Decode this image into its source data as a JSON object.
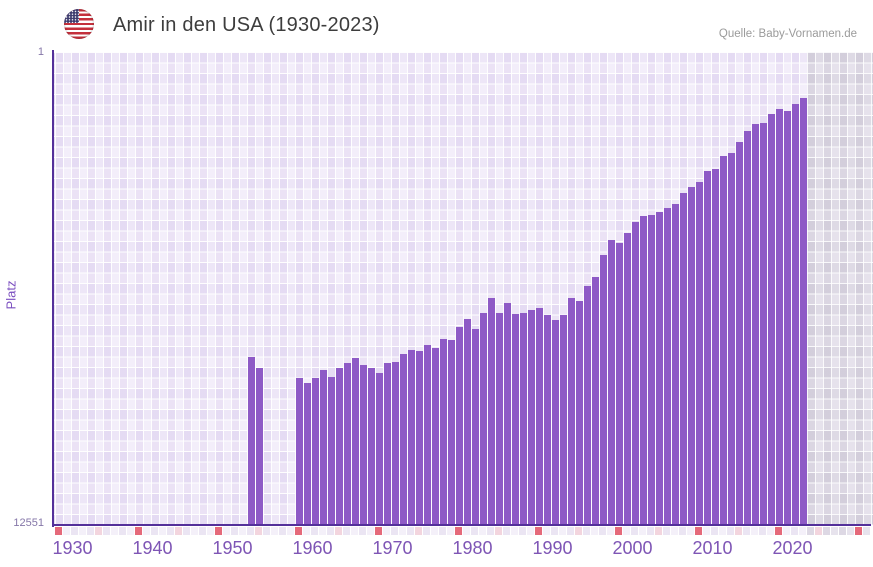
{
  "header": {
    "title": "Amir in den USA (1930-2023)",
    "source": "Quelle: Baby-Vornamen.de"
  },
  "y_axis": {
    "title": "Platz",
    "top_label": "1",
    "bottom_label": "12551"
  },
  "x_axis": {
    "decade_labels": [
      "1930",
      "1940",
      "1950",
      "1960",
      "1970",
      "1980",
      "1990",
      "2000",
      "2010",
      "2020"
    ]
  },
  "colors": {
    "bar": "#8e5ac6",
    "axis_line": "#54309a",
    "decade_tick": "#e5697a",
    "half_decade_tick": "#f3d5de",
    "tick_cell_even": "#ebe5f3",
    "tick_cell_odd": "#f4f0f9",
    "tick_cell_even_future": "#ddd8e4",
    "tick_cell_odd_future": "#e7e3ed",
    "x_label": "#7e55b5",
    "y_label": "#8577a8",
    "title_text": "#3d3d3d",
    "source_text": "#9b9b9b"
  },
  "chart_data": {
    "type": "bar",
    "title": "Amir in den USA (1930-2023)",
    "xlabel": "",
    "ylabel": "Platz",
    "y_inverted": true,
    "ylim": [
      1,
      12551
    ],
    "xlim": [
      1930,
      2031
    ],
    "data_end_year": 2023,
    "legend": "none",
    "grid": "checkerboard",
    "years": [
      1954,
      1955,
      1960,
      1961,
      1962,
      1963,
      1964,
      1965,
      1966,
      1967,
      1968,
      1969,
      1970,
      1971,
      1972,
      1973,
      1974,
      1975,
      1976,
      1977,
      1978,
      1979,
      1980,
      1981,
      1982,
      1983,
      1984,
      1985,
      1986,
      1987,
      1988,
      1989,
      1990,
      1991,
      1992,
      1993,
      1994,
      1995,
      1996,
      1997,
      1998,
      1999,
      2000,
      2001,
      2002,
      2003,
      2004,
      2005,
      2006,
      2007,
      2008,
      2009,
      2010,
      2011,
      2012,
      2013,
      2014,
      2015,
      2016,
      2017,
      2018,
      2019,
      2020,
      2021,
      2022,
      2023
    ],
    "ranks": [
      8090,
      8390,
      8650,
      8780,
      8650,
      8440,
      8620,
      8390,
      8250,
      8120,
      8310,
      8390,
      8520,
      8250,
      8230,
      8010,
      7910,
      7930,
      7780,
      7860,
      7620,
      7640,
      7300,
      7090,
      7350,
      6930,
      6530,
      6930,
      6660,
      6950,
      6930,
      6850,
      6790,
      6980,
      7110,
      6980,
      6530,
      6610,
      6210,
      5970,
      5390,
      4990,
      5070,
      4800,
      4510,
      4350,
      4330,
      4250,
      4140,
      4030,
      3740,
      3580,
      3450,
      3160,
      3110,
      2760,
      2680,
      2390,
      2100,
      1910,
      1890,
      1650,
      1510,
      1570,
      1380,
      1220
    ]
  }
}
